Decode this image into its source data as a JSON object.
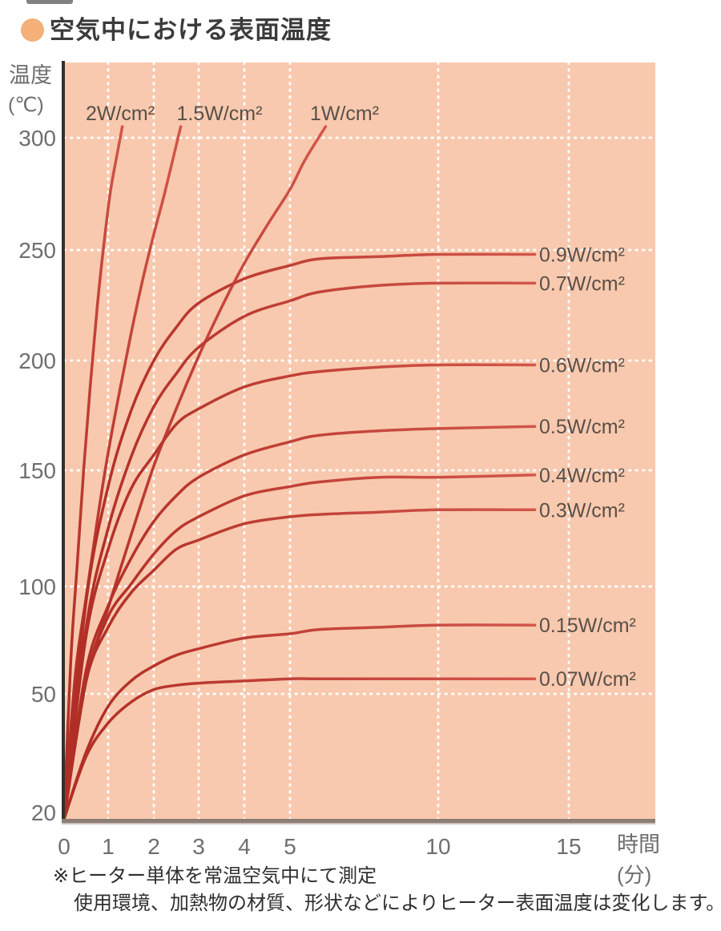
{
  "title": {
    "text": "空気中における表面温度"
  },
  "y_axis": {
    "name_line1": "温度",
    "name_line2": "(℃)",
    "ticks": [
      300,
      250,
      200,
      150,
      100,
      50,
      20
    ]
  },
  "x_axis": {
    "ticks": [
      0,
      1,
      2,
      3,
      4,
      5,
      10,
      15
    ],
    "name_line1": "時間",
    "name_line2": "(分)"
  },
  "footnote": {
    "line1": "※ヒーター単体を常温空気中にて測定",
    "line2": "使用環境、加熱物の材質、形状などによりヒーター表面温度は変化します。"
  },
  "colors": {
    "title_bullet": "#f4b078",
    "title_text": "#3b3b3b",
    "plot_bg": "#f8c9ae",
    "grid": "#ffffff",
    "curve_dark": "#b02d25",
    "curve_light": "#d2564b",
    "axis_left": "#34302d",
    "axis_bottom": "#8d7e75",
    "axis_bottom_highlight": "#cabfb7",
    "tick_text": "#6e6e6e",
    "curve_label_text": "#594f49",
    "footnote_text": "#2f2f2f"
  },
  "chart_data": {
    "type": "line",
    "title": "空気中における表面温度",
    "xlabel": "時間(分)",
    "ylabel": "温度(℃)",
    "x_ticks": [
      0,
      1,
      2,
      3,
      4,
      5,
      10,
      15
    ],
    "y_ticks": [
      20,
      50,
      100,
      150,
      200,
      250,
      300
    ],
    "xlim": [
      0,
      15
    ],
    "ylim": [
      20,
      310
    ],
    "grid": true,
    "legend_position": "inline-labels",
    "note": "x axis is non-linearly spaced (0-5 min expanded, 5-15 min compressed); heater measured alone in room-temperature air; start temp 20C",
    "series": [
      {
        "label": "2W/cm²",
        "label_pos": "top",
        "points": [
          [
            0,
            20
          ],
          [
            0.15,
            65
          ],
          [
            0.3,
            110
          ],
          [
            0.45,
            152
          ],
          [
            0.6,
            190
          ],
          [
            0.75,
            224
          ],
          [
            0.9,
            252
          ],
          [
            1.05,
            276
          ],
          [
            1.2,
            293
          ],
          [
            1.31,
            305
          ]
        ]
      },
      {
        "label": "1.5W/cm²",
        "label_pos": "top",
        "points": [
          [
            0,
            20
          ],
          [
            0.25,
            58
          ],
          [
            0.5,
            95
          ],
          [
            0.75,
            128
          ],
          [
            1,
            158
          ],
          [
            1.25,
            186
          ],
          [
            1.5,
            212
          ],
          [
            1.75,
            236
          ],
          [
            2,
            257
          ],
          [
            2.25,
            276
          ],
          [
            2.6,
            305
          ]
        ]
      },
      {
        "label": "1W/cm²",
        "label_pos": "top",
        "points": [
          [
            0,
            20
          ],
          [
            0.5,
            56
          ],
          [
            1,
            90
          ],
          [
            1.5,
            122
          ],
          [
            2,
            152
          ],
          [
            2.5,
            178
          ],
          [
            3,
            202
          ],
          [
            3.5,
            224
          ],
          [
            4,
            244
          ],
          [
            4.5,
            261
          ],
          [
            5,
            277
          ],
          [
            5.5,
            290
          ],
          [
            6.2,
            305
          ]
        ]
      },
      {
        "label": "0.9W/cm²",
        "label_pos": "right",
        "plateau_c": 248,
        "points": [
          [
            0,
            20
          ],
          [
            0.5,
            93
          ],
          [
            1,
            143
          ],
          [
            1.5,
            177
          ],
          [
            2,
            200
          ],
          [
            2.5,
            215
          ],
          [
            3,
            226
          ],
          [
            4,
            237
          ],
          [
            5,
            243
          ],
          [
            6,
            246
          ],
          [
            8,
            247
          ],
          [
            10,
            248
          ],
          [
            13.7,
            248
          ]
        ]
      },
      {
        "label": "0.7W/cm²",
        "label_pos": "right",
        "plateau_c": 235,
        "points": [
          [
            0,
            20
          ],
          [
            0.5,
            81
          ],
          [
            1,
            125
          ],
          [
            1.5,
            156
          ],
          [
            2,
            179
          ],
          [
            2.5,
            194
          ],
          [
            3,
            206
          ],
          [
            4,
            220
          ],
          [
            5,
            227
          ],
          [
            6,
            231
          ],
          [
            8,
            234
          ],
          [
            10,
            235
          ],
          [
            13.7,
            235
          ]
        ]
      },
      {
        "label": "0.6W/cm²",
        "label_pos": "right",
        "plateau_c": 198,
        "points": [
          [
            0,
            20
          ],
          [
            0.5,
            77
          ],
          [
            1,
            116
          ],
          [
            1.5,
            142
          ],
          [
            2,
            157
          ],
          [
            2.5,
            171
          ],
          [
            3,
            178
          ],
          [
            4,
            188
          ],
          [
            5,
            193
          ],
          [
            6,
            195
          ],
          [
            8,
            197
          ],
          [
            10,
            198
          ],
          [
            13.7,
            198
          ]
        ]
      },
      {
        "label": "0.5W/cm²",
        "label_pos": "right",
        "plateau_c": 170,
        "points": [
          [
            0,
            20
          ],
          [
            0.5,
            61
          ],
          [
            1,
            91
          ],
          [
            1.5,
            112
          ],
          [
            2,
            128
          ],
          [
            2.5,
            139
          ],
          [
            3,
            147
          ],
          [
            4,
            157
          ],
          [
            5,
            163
          ],
          [
            6,
            166
          ],
          [
            8,
            168
          ],
          [
            10,
            169
          ],
          [
            13.7,
            170
          ]
        ]
      },
      {
        "label": "0.4W/cm²",
        "label_pos": "right",
        "plateau_c": 148,
        "points": [
          [
            0,
            20
          ],
          [
            0.5,
            56
          ],
          [
            1,
            86
          ],
          [
            1.5,
            101
          ],
          [
            2,
            114
          ],
          [
            2.5,
            124
          ],
          [
            3,
            130
          ],
          [
            4,
            139
          ],
          [
            5,
            143
          ],
          [
            6,
            145
          ],
          [
            8,
            147
          ],
          [
            10,
            147
          ],
          [
            13.7,
            148
          ]
        ]
      },
      {
        "label": "0.3W/cm²",
        "label_pos": "right",
        "plateau_c": 133,
        "points": [
          [
            0,
            20
          ],
          [
            0.5,
            56
          ],
          [
            1,
            81
          ],
          [
            1.5,
            97
          ],
          [
            2,
            107
          ],
          [
            2.5,
            116
          ],
          [
            3,
            120
          ],
          [
            4,
            127
          ],
          [
            5,
            130
          ],
          [
            6,
            131
          ],
          [
            8,
            132
          ],
          [
            10,
            133
          ],
          [
            13.7,
            133
          ]
        ]
      },
      {
        "label": "0.15W/cm²",
        "label_pos": "right",
        "plateau_c": 82,
        "points": [
          [
            0,
            20
          ],
          [
            0.5,
            36
          ],
          [
            1,
            47
          ],
          [
            1.5,
            56
          ],
          [
            2,
            63
          ],
          [
            2.5,
            68
          ],
          [
            3,
            71
          ],
          [
            4,
            76
          ],
          [
            5,
            78
          ],
          [
            6,
            80
          ],
          [
            8,
            81
          ],
          [
            10,
            82
          ],
          [
            13.7,
            82
          ]
        ]
      },
      {
        "label": "0.07W/cm²",
        "label_pos": "right",
        "plateau_c": 57,
        "points": [
          [
            0,
            20
          ],
          [
            0.5,
            35
          ],
          [
            1,
            43
          ],
          [
            1.5,
            48
          ],
          [
            2,
            52
          ],
          [
            2.5,
            54
          ],
          [
            3,
            55
          ],
          [
            4,
            56
          ],
          [
            5,
            57
          ],
          [
            6,
            57
          ],
          [
            8,
            57
          ],
          [
            10,
            57
          ],
          [
            13.7,
            57
          ]
        ]
      }
    ]
  }
}
